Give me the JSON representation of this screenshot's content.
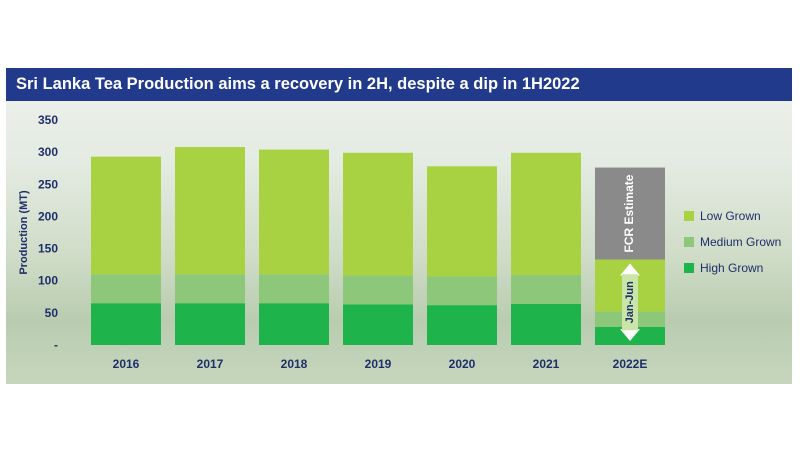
{
  "chart_data": {
    "type": "bar",
    "stacked": true,
    "title": "Sri Lanka Tea Production aims a recovery in 2H, despite a dip in 1H2022",
    "ylabel": "Production (MT)",
    "xlabel": "",
    "ylim": [
      0,
      350
    ],
    "yticks": [
      "350",
      "300",
      "250",
      "200",
      "150",
      "100",
      "50",
      "-"
    ],
    "ytick_values": [
      350,
      300,
      250,
      200,
      150,
      100,
      50,
      0
    ],
    "categories": [
      "2016",
      "2017",
      "2018",
      "2019",
      "2020",
      "2021",
      "2022E"
    ],
    "series": [
      {
        "name": "High Grown",
        "color": "#1fb34c",
        "values": [
          65,
          65,
          65,
          63,
          62,
          64,
          28
        ]
      },
      {
        "name": "Medium Grown",
        "color": "#8cc77a",
        "values": [
          45,
          45,
          45,
          45,
          45,
          45,
          24
        ]
      },
      {
        "name": "Low Grown",
        "color": "#a9d242",
        "values": [
          183,
          198,
          194,
          191,
          171,
          190,
          81
        ]
      }
    ],
    "estimate": {
      "category": "2022E",
      "value": 143,
      "color": "#8a8a8a",
      "label": "FCR Estimate"
    },
    "annotation": "Jan-Jun",
    "legend_position": "right",
    "grid": false
  }
}
